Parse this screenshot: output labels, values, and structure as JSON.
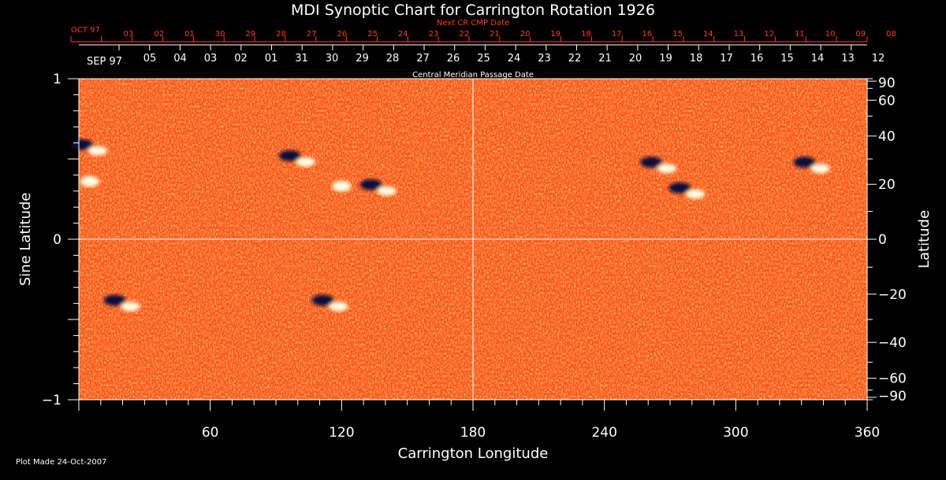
{
  "chart_data": {
    "type": "heatmap",
    "title": "MDI Synoptic Chart for Carrington Rotation 1926",
    "xlabel": "Carrington Longitude",
    "ylabel": "Sine Latitude",
    "y2label": "Latitude",
    "xlim": [
      0,
      360
    ],
    "ylim": [
      -1,
      1
    ],
    "x_ticks": [
      60,
      120,
      180,
      240,
      300,
      360
    ],
    "y_ticks_left": [
      1,
      0,
      -1
    ],
    "y_ticks_left_labels": [
      "1",
      "0",
      "−1"
    ],
    "latitude_ticks": [
      90,
      60,
      40,
      20,
      0,
      -20,
      -40,
      -60,
      -90
    ],
    "latitude_tick_labels": [
      "90",
      "60",
      "40",
      "20",
      "0",
      "−20",
      "−40",
      "−60",
      "−90"
    ],
    "grid_lines": {
      "x": [
        180
      ],
      "y": [
        0
      ]
    },
    "top_axis": {
      "label": "Central Meridian Passage Date",
      "month_start": "SEP 97",
      "dates": [
        "05",
        "04",
        "03",
        "02",
        "01",
        "31",
        "30",
        "29",
        "28",
        "27",
        "26",
        "25",
        "24",
        "23",
        "22",
        "21",
        "20",
        "19",
        "18",
        "17",
        "16",
        "15",
        "14",
        "13",
        "12"
      ]
    },
    "next_axis": {
      "label": "Next CR CMP Date",
      "month_start": "OCT 97",
      "dates": [
        "03",
        "02",
        "01",
        "30",
        "29",
        "28",
        "27",
        "26",
        "25",
        "24",
        "23",
        "22",
        "21",
        "20",
        "19",
        "18",
        "17",
        "16",
        "15",
        "14",
        "13",
        "12",
        "11",
        "10",
        "09",
        "08"
      ]
    },
    "active_regions": [
      {
        "lon": 5,
        "sinlat": 0.57,
        "polarity": "mixed"
      },
      {
        "lon": 5,
        "sinlat": 0.36,
        "polarity": "positive"
      },
      {
        "lon": 100,
        "sinlat": 0.5,
        "polarity": "mixed"
      },
      {
        "lon": 120,
        "sinlat": 0.33,
        "polarity": "positive"
      },
      {
        "lon": 137,
        "sinlat": 0.32,
        "polarity": "mixed"
      },
      {
        "lon": 265,
        "sinlat": 0.46,
        "polarity": "mixed"
      },
      {
        "lon": 278,
        "sinlat": 0.3,
        "polarity": "mixed"
      },
      {
        "lon": 335,
        "sinlat": 0.46,
        "polarity": "mixed"
      },
      {
        "lon": 20,
        "sinlat": -0.4,
        "polarity": "mixed"
      },
      {
        "lon": 115,
        "sinlat": -0.4,
        "polarity": "mixed"
      }
    ],
    "colors": {
      "background": "#ff5a14",
      "positive": "#fffbe0",
      "negative": "#0a0a3a"
    }
  },
  "footer": {
    "plot_made": "Plot Made 24-Oct-2007"
  }
}
